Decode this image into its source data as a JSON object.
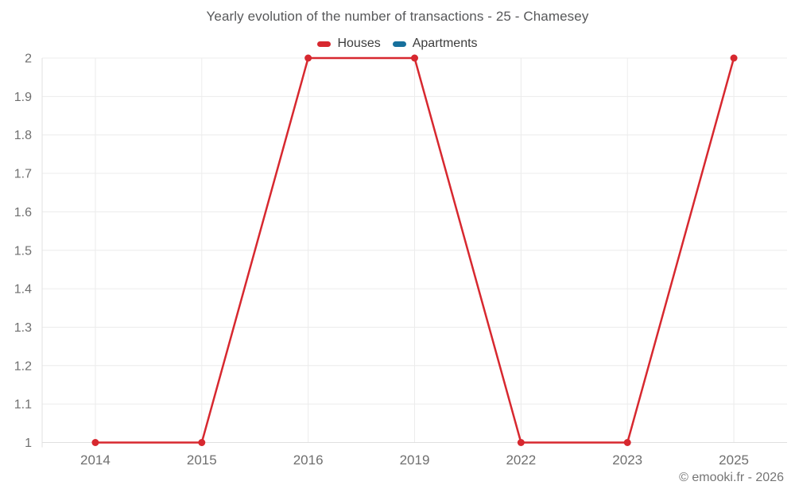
{
  "title": "Yearly evolution of the number of transactions - 25 - Chamesey",
  "legend": {
    "items": [
      {
        "label": "Houses",
        "color": "#d7282f"
      },
      {
        "label": "Apartments",
        "color": "#17709c"
      }
    ]
  },
  "footer": {
    "copyright": "© emooki.fr - 2026"
  },
  "colors": {
    "background": "#ffffff",
    "grid": "#ececec",
    "axis": "#e0e0e0",
    "tick_label": "#6f6f6f",
    "title": "#57585a",
    "legend_text": "#3c3c3c",
    "copyright": "#757575",
    "houses": "#d7282f",
    "apartments": "#17709c"
  },
  "chart_data": {
    "type": "line",
    "title": "Yearly evolution of the number of transactions - 25 - Chamesey",
    "categories": [
      "2014",
      "2015",
      "2016",
      "2019",
      "2022",
      "2023",
      "2025"
    ],
    "series": [
      {
        "name": "Houses",
        "color": "#d7282f",
        "values": [
          1,
          1,
          2,
          2,
          1,
          1,
          2
        ]
      },
      {
        "name": "Apartments",
        "color": "#17709c",
        "values": []
      }
    ],
    "xlabel": "",
    "ylabel": "",
    "ylim": [
      1,
      2
    ],
    "y_ticks": [
      1,
      1.1,
      1.2,
      1.3,
      1.4,
      1.5,
      1.6,
      1.7,
      1.8,
      1.9,
      2
    ],
    "grid": true,
    "legend_position": "top",
    "marker": "circle"
  }
}
